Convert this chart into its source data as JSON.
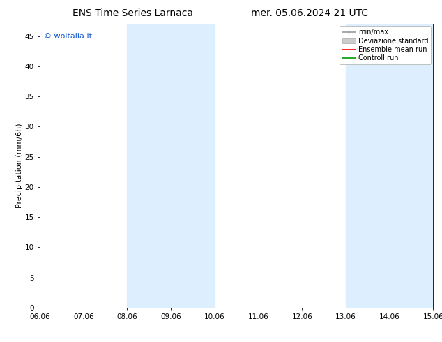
{
  "title_left": "ENS Time Series Larnaca",
  "title_right": "mer. 05.06.2024 21 UTC",
  "ylabel": "Precipitation (mm/6h)",
  "xlim": [
    0,
    9
  ],
  "ylim": [
    0,
    47
  ],
  "yticks": [
    0,
    5,
    10,
    15,
    20,
    25,
    30,
    35,
    40,
    45
  ],
  "xtick_labels": [
    "06.06",
    "07.06",
    "08.06",
    "09.06",
    "10.06",
    "11.06",
    "12.06",
    "13.06",
    "14.06",
    "15.06"
  ],
  "shaded_bands": [
    {
      "x_start": 2,
      "x_end": 4,
      "color": "#ddeeff"
    },
    {
      "x_start": 7,
      "x_end": 9,
      "color": "#ddeeff"
    }
  ],
  "watermark_text": "© woitalia.it",
  "watermark_color": "#1155cc",
  "legend_labels": [
    "min/max",
    "Deviazione standard",
    "Ensemble mean run",
    "Controll run"
  ],
  "legend_line_colors": [
    "#999999",
    "#cccccc",
    "#ff0000",
    "#009900"
  ],
  "background_color": "#ffffff",
  "plot_background": "#ffffff",
  "title_fontsize": 10,
  "tick_fontsize": 7.5,
  "ylabel_fontsize": 8,
  "legend_fontsize": 7
}
